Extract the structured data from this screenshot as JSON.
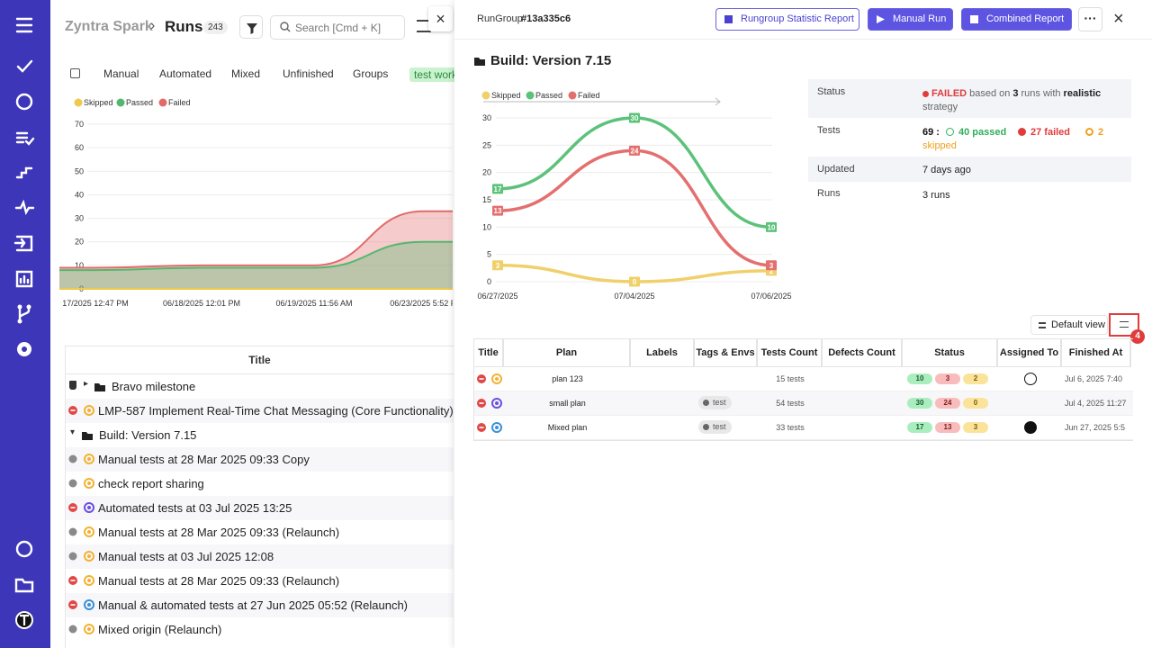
{
  "header": {
    "project": "Zyntra Spark",
    "page": "Runs",
    "count": "243",
    "search_placeholder": "Search [Cmd + K]"
  },
  "tabs": [
    "Manual",
    "Automated",
    "Mixed",
    "Unfinished",
    "Groups",
    "test work"
  ],
  "runs_chart": {
    "type": "area",
    "categories": [
      "17/2025 12:47 PM",
      "06/18/2025 12:01 PM",
      "06/19/2025 11:56 AM",
      "06/23/2025 5:52 P"
    ],
    "series": [
      {
        "name": "Skipped",
        "color": "#eec94b",
        "values": [
          0,
          0,
          0,
          0
        ]
      },
      {
        "name": "Passed",
        "color": "#52b86e",
        "values": [
          8,
          9,
          9,
          20
        ]
      },
      {
        "name": "Failed",
        "color": "#e26a6a",
        "values": [
          9,
          10,
          10,
          33
        ]
      }
    ],
    "ylim": [
      0,
      70
    ],
    "yticks": [
      0,
      10,
      20,
      30,
      40,
      50,
      60,
      70
    ],
    "grid": true
  },
  "runs_table": {
    "header": "Title",
    "rows": [
      {
        "label": "Bravo milestone",
        "kind": "milestone"
      },
      {
        "label": "LMP-587 Implement Real-Time Chat Messaging (Core Functionality)",
        "kind": "run",
        "status": "failed",
        "origin": "manual"
      },
      {
        "label": "Build: Version 7.15",
        "kind": "group"
      },
      {
        "label": "Manual tests at 28 Mar 2025 09:33 Copy",
        "kind": "run",
        "status": "none",
        "origin": "manual"
      },
      {
        "label": "check report sharing",
        "kind": "run",
        "status": "none",
        "origin": "manual"
      },
      {
        "label": "Automated tests at 03 Jul 2025 13:25",
        "kind": "run",
        "status": "failed",
        "origin": "automated"
      },
      {
        "label": "Manual tests at 28 Mar 2025 09:33 (Relaunch)",
        "kind": "run",
        "status": "none",
        "origin": "manual"
      },
      {
        "label": "Manual tests at 03 Jul 2025 12:08",
        "kind": "run",
        "status": "none",
        "origin": "manual"
      },
      {
        "label": "Manual tests at 28 Mar 2025 09:33 (Relaunch)",
        "kind": "run",
        "status": "failed",
        "origin": "manual"
      },
      {
        "label": "Manual & automated tests at 27 Jun 2025 05:52 (Relaunch)",
        "kind": "run",
        "status": "failed",
        "origin": "mixed"
      },
      {
        "label": "Mixed origin (Relaunch)",
        "kind": "run",
        "status": "none",
        "origin": "manual"
      }
    ]
  },
  "group": {
    "label": "RunGroup",
    "id": "#13a335c6",
    "buttons": [
      "Rungroup Statistic Report",
      "Manual Run",
      "Combined Report"
    ],
    "title": "Build: Version 7.15"
  },
  "group_chart": {
    "type": "line",
    "categories": [
      "06/27/2025",
      "07/04/2025",
      "07/06/2025"
    ],
    "series": [
      {
        "name": "Skipped",
        "color": "#f0d06a",
        "values": [
          3,
          0,
          2
        ]
      },
      {
        "name": "Passed",
        "color": "#5cc27a",
        "values": [
          17,
          30,
          10
        ]
      },
      {
        "name": "Failed",
        "color": "#e46f6f",
        "values": [
          13,
          24,
          3
        ]
      }
    ],
    "ylim": [
      0,
      30
    ],
    "yticks": [
      0,
      5,
      10,
      15,
      20,
      25,
      30
    ],
    "grid": true
  },
  "details": {
    "status": {
      "label": "Status",
      "value": "FAILED",
      "text1": "based on",
      "runs": "3",
      "text2": "runs with",
      "strategy": "realistic",
      "text3": "strategy"
    },
    "tests": {
      "label": "Tests",
      "total": "69 :",
      "passed": "40 passed",
      "failed": "27 failed",
      "skipped_count": "2",
      "skipped": "skipped"
    },
    "updated": {
      "label": "Updated",
      "value": "7 days ago"
    },
    "runs": {
      "label": "Runs",
      "value": "3 runs"
    }
  },
  "view": {
    "label": "Default view",
    "badge": "4"
  },
  "plans_table": {
    "columns": [
      "Title",
      "Plan",
      "Labels",
      "Tags & Envs",
      "Tests Count",
      "Defects Count",
      "Status",
      "Assigned To",
      "Finished At"
    ],
    "rows": [
      {
        "origin": "manual",
        "plan": "plan 123",
        "tests": "15 tests",
        "status": [
          10,
          3,
          2
        ],
        "assignee": "outline",
        "finished": "Jul 6, 2025 7:40"
      },
      {
        "origin": "automated",
        "plan": "small plan",
        "tag": "test",
        "tests": "54 tests",
        "status": [
          30,
          24,
          0
        ],
        "finished": "Jul 4, 2025 11:27"
      },
      {
        "origin": "mixed",
        "plan": "Mixed plan",
        "tag": "test",
        "tests": "33 tests",
        "status": [
          17,
          13,
          3
        ],
        "assignee": "filled",
        "finished": "Jun 27, 2025 5:5"
      }
    ]
  }
}
